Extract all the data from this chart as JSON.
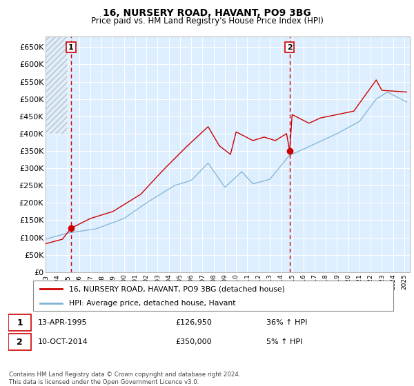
{
  "title": "16, NURSERY ROAD, HAVANT, PO9 3BG",
  "subtitle": "Price paid vs. HM Land Registry's House Price Index (HPI)",
  "legend_line1": "16, NURSERY ROAD, HAVANT, PO9 3BG (detached house)",
  "legend_line2": "HPI: Average price, detached house, Havant",
  "annotation1_date": "13-APR-1995",
  "annotation1_price": "£126,950",
  "annotation1_hpi": "36% ↑ HPI",
  "annotation2_date": "10-OCT-2014",
  "annotation2_price": "£350,000",
  "annotation2_hpi": "5% ↑ HPI",
  "footer": "Contains HM Land Registry data © Crown copyright and database right 2024.\nThis data is licensed under the Open Government Licence v3.0.",
  "sale_color": "#cc0000",
  "hpi_color": "#7fb3d3",
  "dashed_line_color": "#cc0000",
  "bg_color": "#ddeeff",
  "grid_color": "#ffffff",
  "ylim": [
    0,
    680000
  ],
  "yticks": [
    0,
    50000,
    100000,
    150000,
    200000,
    250000,
    300000,
    350000,
    400000,
    450000,
    500000,
    550000,
    600000,
    650000
  ],
  "sale1_x": 1995.28,
  "sale1_y": 126950,
  "sale2_x": 2014.78,
  "sale2_y": 350000,
  "xlim_left": 1993.0,
  "xlim_right": 2025.5,
  "xtick_years": [
    1993,
    1994,
    1995,
    1996,
    1997,
    1998,
    1999,
    2000,
    2001,
    2002,
    2003,
    2004,
    2005,
    2006,
    2007,
    2008,
    2009,
    2010,
    2011,
    2012,
    2013,
    2014,
    2015,
    2016,
    2017,
    2018,
    2019,
    2020,
    2021,
    2022,
    2023,
    2024,
    2025
  ]
}
